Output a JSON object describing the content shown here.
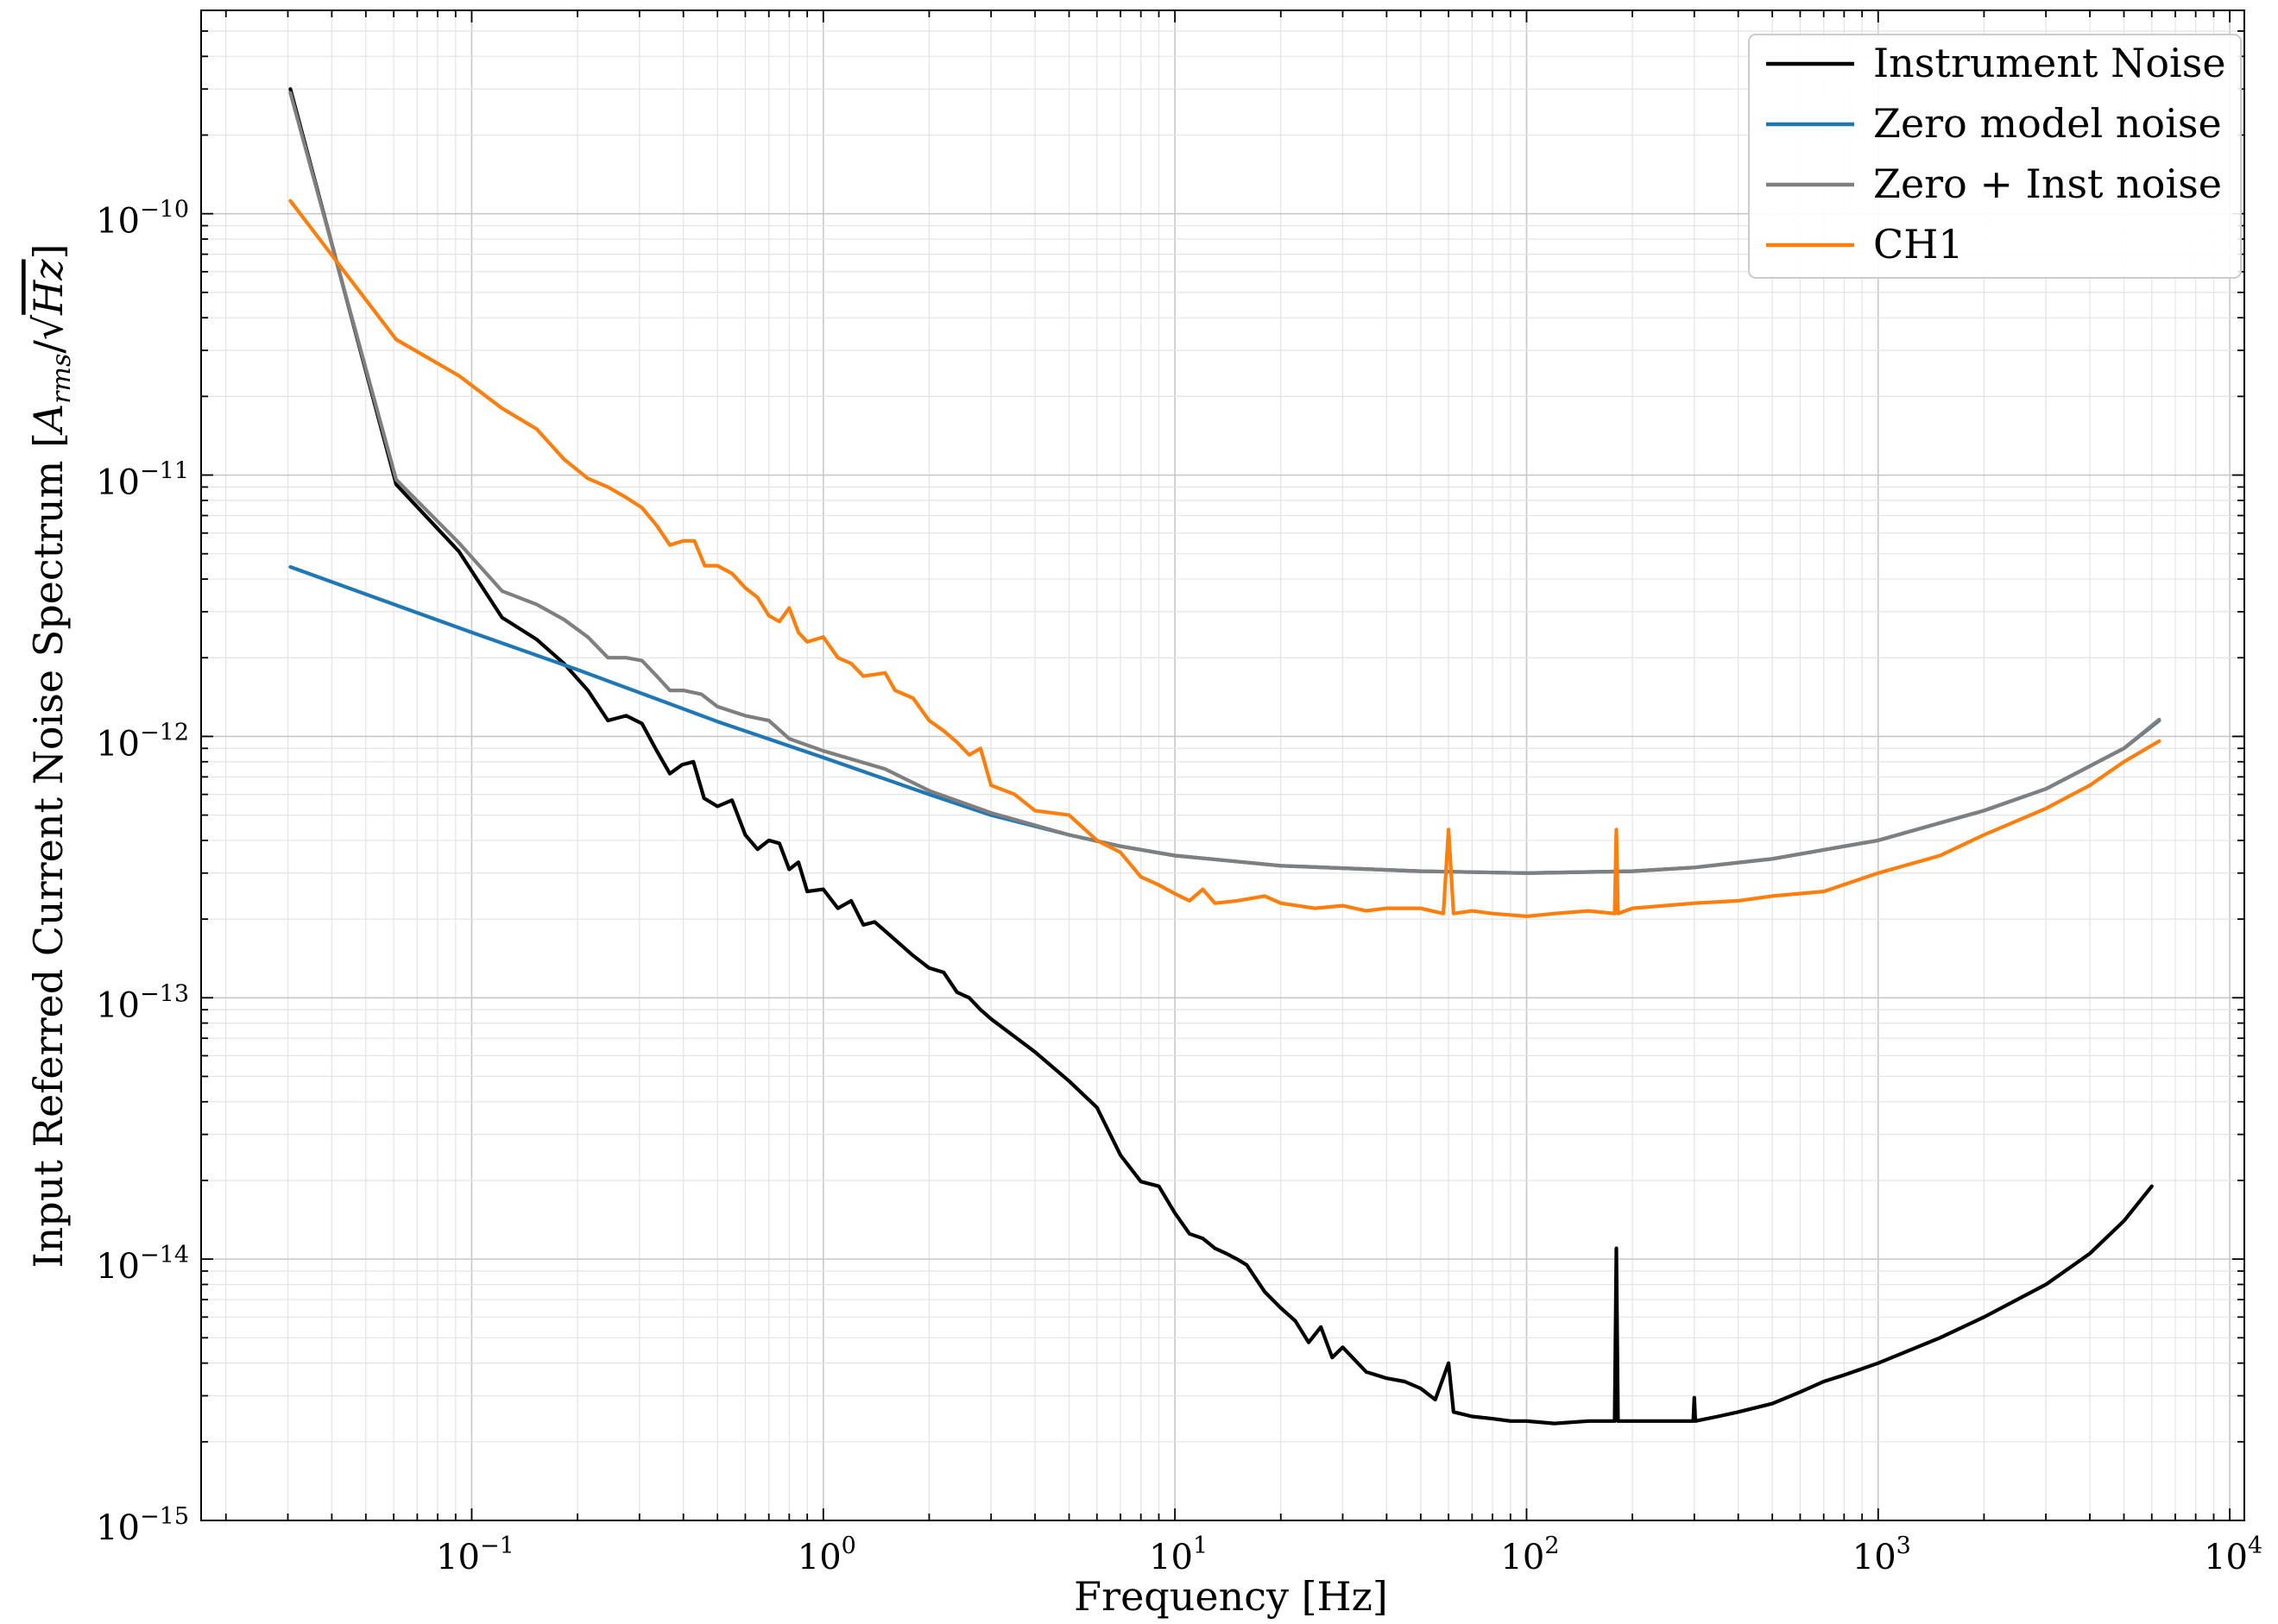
{
  "chart_data": {
    "type": "line",
    "title": "",
    "xlabel": "Frequency [Hz]",
    "ylabel": {
      "prefix": "Input Referred Current Noise Spectrum [",
      "A": "A",
      "sub": "rms",
      "slash": "/√",
      "Hz": "Hz",
      "suffix": "]"
    },
    "x_scale": "log",
    "y_scale": "log",
    "xlim": [
      0.017,
      11000
    ],
    "ylim": [
      1e-15,
      6e-10
    ],
    "x_ticks": [
      {
        "value": 0.1,
        "base": "10",
        "exp": "−1"
      },
      {
        "value": 1,
        "base": "10",
        "exp": "0"
      },
      {
        "value": 10,
        "base": "10",
        "exp": "1"
      },
      {
        "value": 100,
        "base": "10",
        "exp": "2"
      },
      {
        "value": 1000,
        "base": "10",
        "exp": "3"
      },
      {
        "value": 10000,
        "base": "10",
        "exp": "4"
      }
    ],
    "y_ticks": [
      {
        "value": 1e-10,
        "base": "10",
        "exp": "−10"
      },
      {
        "value": 1e-11,
        "base": "10",
        "exp": "−11"
      },
      {
        "value": 1e-12,
        "base": "10",
        "exp": "−12"
      },
      {
        "value": 1e-13,
        "base": "10",
        "exp": "−13"
      },
      {
        "value": 1e-14,
        "base": "10",
        "exp": "−14"
      },
      {
        "value": 1e-15,
        "base": "10",
        "exp": "−15"
      }
    ],
    "grid": true,
    "legend_position": "top-right",
    "series": [
      {
        "name": "Instrument Noise",
        "color": "#000000",
        "points": [
          [
            0.0305,
            3e-10
          ],
          [
            0.061,
            9.2e-12
          ],
          [
            0.092,
            5.1e-12
          ],
          [
            0.122,
            2.85e-12
          ],
          [
            0.153,
            2.35e-12
          ],
          [
            0.183,
            1.9e-12
          ],
          [
            0.214,
            1.5e-12
          ],
          [
            0.244,
            1.15e-12
          ],
          [
            0.275,
            1.2e-12
          ],
          [
            0.305,
            1.12e-12
          ],
          [
            0.336,
            8.8e-13
          ],
          [
            0.366,
            7.2e-13
          ],
          [
            0.397,
            7.8e-13
          ],
          [
            0.427,
            8e-13
          ],
          [
            0.458,
            5.8e-13
          ],
          [
            0.5,
            5.4e-13
          ],
          [
            0.55,
            5.7e-13
          ],
          [
            0.6,
            4.2e-13
          ],
          [
            0.65,
            3.7e-13
          ],
          [
            0.7,
            4e-13
          ],
          [
            0.75,
            3.9e-13
          ],
          [
            0.8,
            3.1e-13
          ],
          [
            0.85,
            3.3e-13
          ],
          [
            0.9,
            2.55e-13
          ],
          [
            1.0,
            2.6e-13
          ],
          [
            1.1,
            2.2e-13
          ],
          [
            1.2,
            2.35e-13
          ],
          [
            1.3,
            1.9e-13
          ],
          [
            1.4,
            1.95e-13
          ],
          [
            1.5,
            1.8e-13
          ],
          [
            1.7,
            1.55e-13
          ],
          [
            1.8,
            1.45e-13
          ],
          [
            2.0,
            1.3e-13
          ],
          [
            2.2,
            1.25e-13
          ],
          [
            2.4,
            1.05e-13
          ],
          [
            2.6,
            1e-13
          ],
          [
            2.8,
            9e-14
          ],
          [
            3.0,
            8.3e-14
          ],
          [
            4.0,
            6.2e-14
          ],
          [
            5.0,
            4.8e-14
          ],
          [
            6.0,
            3.8e-14
          ],
          [
            7.0,
            2.5e-14
          ],
          [
            8.0,
            1.98e-14
          ],
          [
            9.0,
            1.9e-14
          ],
          [
            10.0,
            1.5e-14
          ],
          [
            11.0,
            1.25e-14
          ],
          [
            12.0,
            1.2e-14
          ],
          [
            13.0,
            1.1e-14
          ],
          [
            14.0,
            1.05e-14
          ],
          [
            15.0,
            1e-14
          ],
          [
            16.0,
            9.5e-15
          ],
          [
            18.0,
            7.5e-15
          ],
          [
            20.0,
            6.5e-15
          ],
          [
            22.0,
            5.8e-15
          ],
          [
            24.0,
            4.8e-15
          ],
          [
            26.0,
            5.5e-15
          ],
          [
            28.0,
            4.2e-15
          ],
          [
            30.0,
            4.6e-15
          ],
          [
            35.0,
            3.7e-15
          ],
          [
            40.0,
            3.5e-15
          ],
          [
            45.0,
            3.4e-15
          ],
          [
            50.0,
            3.2e-15
          ],
          [
            55.0,
            2.9e-15
          ],
          [
            60.0,
            4e-15
          ],
          [
            62.0,
            2.6e-15
          ],
          [
            70.0,
            2.5e-15
          ],
          [
            80.0,
            2.45e-15
          ],
          [
            90.0,
            2.4e-15
          ],
          [
            100.0,
            2.4e-15
          ],
          [
            120.0,
            2.35e-15
          ],
          [
            150.0,
            2.4e-15
          ],
          [
            178.0,
            2.4e-15
          ],
          [
            180.0,
            1.1e-14
          ],
          [
            182.0,
            2.4e-15
          ],
          [
            200.0,
            2.4e-15
          ],
          [
            250.0,
            2.4e-15
          ],
          [
            298.0,
            2.4e-15
          ],
          [
            300.0,
            2.95e-15
          ],
          [
            302.0,
            2.4e-15
          ],
          [
            350.0,
            2.5e-15
          ],
          [
            400.0,
            2.6e-15
          ],
          [
            500.0,
            2.8e-15
          ],
          [
            600.0,
            3.1e-15
          ],
          [
            700.0,
            3.4e-15
          ],
          [
            800.0,
            3.6e-15
          ],
          [
            1000.0,
            4e-15
          ],
          [
            1500.0,
            5e-15
          ],
          [
            2000.0,
            6e-15
          ],
          [
            3000.0,
            8e-15
          ],
          [
            4000.0,
            1.05e-14
          ],
          [
            5000.0,
            1.4e-14
          ],
          [
            6000.0,
            1.9e-14
          ]
        ]
      },
      {
        "name": "Zero model noise",
        "color": "#1f77b4",
        "points": [
          [
            0.0305,
            4.45e-12
          ],
          [
            0.05,
            3.5e-12
          ],
          [
            0.1,
            2.5e-12
          ],
          [
            0.2,
            1.8e-12
          ],
          [
            0.5,
            1.14e-12
          ],
          [
            1.0,
            8.3e-13
          ],
          [
            2.0,
            6e-13
          ],
          [
            3.0,
            5e-13
          ],
          [
            5.0,
            4.2e-13
          ],
          [
            7.0,
            3.8e-13
          ],
          [
            10.0,
            3.5e-13
          ],
          [
            20.0,
            3.2e-13
          ],
          [
            50.0,
            3.05e-13
          ],
          [
            100.0,
            3e-13
          ],
          [
            200.0,
            3.05e-13
          ],
          [
            300.0,
            3.15e-13
          ],
          [
            500.0,
            3.4e-13
          ],
          [
            1000.0,
            4e-13
          ],
          [
            2000.0,
            5.2e-13
          ],
          [
            3000.0,
            6.3e-13
          ],
          [
            5000.0,
            9e-13
          ],
          [
            6300.0,
            1.15e-12
          ]
        ]
      },
      {
        "name": "Zero + Inst noise",
        "color": "#7f7f7f",
        "points": [
          [
            0.0305,
            2.9e-10
          ],
          [
            0.061,
            9.6e-12
          ],
          [
            0.092,
            5.5e-12
          ],
          [
            0.122,
            3.6e-12
          ],
          [
            0.153,
            3.2e-12
          ],
          [
            0.183,
            2.8e-12
          ],
          [
            0.214,
            2.4e-12
          ],
          [
            0.244,
            2e-12
          ],
          [
            0.275,
            2e-12
          ],
          [
            0.305,
            1.95e-12
          ],
          [
            0.336,
            1.7e-12
          ],
          [
            0.366,
            1.5e-12
          ],
          [
            0.4,
            1.5e-12
          ],
          [
            0.45,
            1.45e-12
          ],
          [
            0.5,
            1.3e-12
          ],
          [
            0.6,
            1.2e-12
          ],
          [
            0.7,
            1.15e-12
          ],
          [
            0.8,
            9.8e-13
          ],
          [
            1.0,
            8.8e-13
          ],
          [
            1.5,
            7.5e-13
          ],
          [
            2.0,
            6.2e-13
          ],
          [
            3.0,
            5.1e-13
          ],
          [
            5.0,
            4.2e-13
          ],
          [
            7.0,
            3.8e-13
          ],
          [
            10.0,
            3.5e-13
          ],
          [
            20.0,
            3.2e-13
          ],
          [
            50.0,
            3.05e-13
          ],
          [
            100.0,
            3e-13
          ],
          [
            200.0,
            3.05e-13
          ],
          [
            300.0,
            3.15e-13
          ],
          [
            500.0,
            3.4e-13
          ],
          [
            1000.0,
            4e-13
          ],
          [
            2000.0,
            5.2e-13
          ],
          [
            3000.0,
            6.3e-13
          ],
          [
            5000.0,
            9e-13
          ],
          [
            6300.0,
            1.16e-12
          ]
        ]
      },
      {
        "name": "CH1",
        "color": "#ff7f0e",
        "points": [
          [
            0.0305,
            1.12e-10
          ],
          [
            0.061,
            3.3e-11
          ],
          [
            0.092,
            2.4e-11
          ],
          [
            0.122,
            1.8e-11
          ],
          [
            0.153,
            1.5e-11
          ],
          [
            0.183,
            1.15e-11
          ],
          [
            0.214,
            9.7e-12
          ],
          [
            0.244,
            9e-12
          ],
          [
            0.275,
            8.2e-12
          ],
          [
            0.305,
            7.5e-12
          ],
          [
            0.336,
            6.4e-12
          ],
          [
            0.366,
            5.4e-12
          ],
          [
            0.4,
            5.6e-12
          ],
          [
            0.43,
            5.6e-12
          ],
          [
            0.46,
            4.5e-12
          ],
          [
            0.5,
            4.5e-12
          ],
          [
            0.55,
            4.2e-12
          ],
          [
            0.6,
            3.7e-12
          ],
          [
            0.65,
            3.4e-12
          ],
          [
            0.7,
            2.9e-12
          ],
          [
            0.75,
            2.75e-12
          ],
          [
            0.8,
            3.1e-12
          ],
          [
            0.85,
            2.5e-12
          ],
          [
            0.9,
            2.3e-12
          ],
          [
            1.0,
            2.4e-12
          ],
          [
            1.1,
            2e-12
          ],
          [
            1.2,
            1.9e-12
          ],
          [
            1.3,
            1.7e-12
          ],
          [
            1.5,
            1.75e-12
          ],
          [
            1.6,
            1.5e-12
          ],
          [
            1.8,
            1.4e-12
          ],
          [
            2.0,
            1.15e-12
          ],
          [
            2.2,
            1.05e-12
          ],
          [
            2.4,
            9.5e-13
          ],
          [
            2.6,
            8.5e-13
          ],
          [
            2.8,
            9e-13
          ],
          [
            3.0,
            6.5e-13
          ],
          [
            3.5,
            6e-13
          ],
          [
            4.0,
            5.2e-13
          ],
          [
            5.0,
            5e-13
          ],
          [
            6.0,
            4e-13
          ],
          [
            7.0,
            3.6e-13
          ],
          [
            8.0,
            2.9e-13
          ],
          [
            9.0,
            2.7e-13
          ],
          [
            10.0,
            2.5e-13
          ],
          [
            11.0,
            2.35e-13
          ],
          [
            12.0,
            2.6e-13
          ],
          [
            13.0,
            2.3e-13
          ],
          [
            15.0,
            2.35e-13
          ],
          [
            18.0,
            2.45e-13
          ],
          [
            20.0,
            2.3e-13
          ],
          [
            25.0,
            2.2e-13
          ],
          [
            30.0,
            2.25e-13
          ],
          [
            35.0,
            2.15e-13
          ],
          [
            40.0,
            2.2e-13
          ],
          [
            50.0,
            2.2e-13
          ],
          [
            58.0,
            2.1e-13
          ],
          [
            60.0,
            4.4e-13
          ],
          [
            62.0,
            2.1e-13
          ],
          [
            70.0,
            2.15e-13
          ],
          [
            80.0,
            2.1e-13
          ],
          [
            100.0,
            2.05e-13
          ],
          [
            120.0,
            2.1e-13
          ],
          [
            150.0,
            2.15e-13
          ],
          [
            178.0,
            2.1e-13
          ],
          [
            180.0,
            4.4e-13
          ],
          [
            182.0,
            2.1e-13
          ],
          [
            200.0,
            2.2e-13
          ],
          [
            300.0,
            2.3e-13
          ],
          [
            400.0,
            2.35e-13
          ],
          [
            500.0,
            2.45e-13
          ],
          [
            700.0,
            2.55e-13
          ],
          [
            1000.0,
            3e-13
          ],
          [
            1500.0,
            3.5e-13
          ],
          [
            2000.0,
            4.2e-13
          ],
          [
            3000.0,
            5.3e-13
          ],
          [
            4000.0,
            6.5e-13
          ],
          [
            5000.0,
            8e-13
          ],
          [
            6300.0,
            9.6e-13
          ]
        ]
      }
    ]
  }
}
